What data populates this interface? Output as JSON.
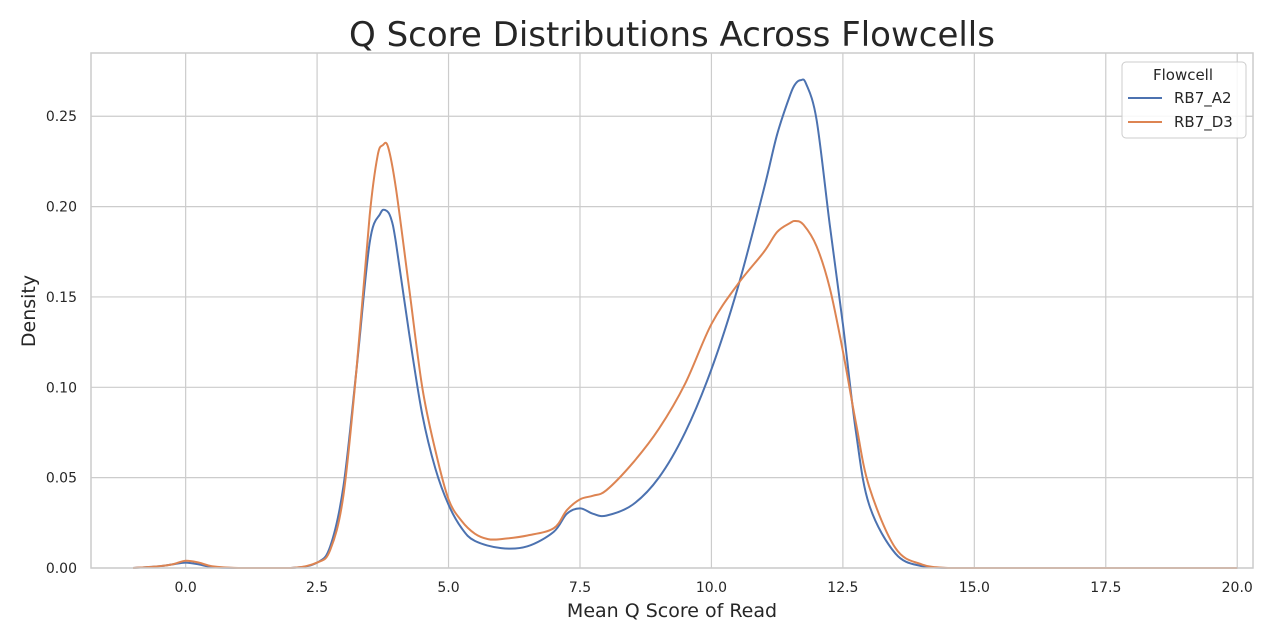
{
  "chart_data": {
    "type": "line",
    "title": "Q Score Distributions Across Flowcells",
    "xlabel": "Mean Q Score of Read",
    "ylabel": "Density",
    "xlim": [
      -1.8,
      20.3
    ],
    "ylim": [
      0,
      0.285
    ],
    "xticks": [
      0.0,
      2.5,
      5.0,
      7.5,
      10.0,
      12.5,
      15.0,
      17.5,
      20.0
    ],
    "xtick_labels": [
      "0.0",
      "2.5",
      "5.0",
      "7.5",
      "10.0",
      "12.5",
      "15.0",
      "17.5",
      "20.0"
    ],
    "yticks": [
      0.0,
      0.05,
      0.1,
      0.15,
      0.2,
      0.25
    ],
    "ytick_labels": [
      "0.00",
      "0.05",
      "0.10",
      "0.15",
      "0.20",
      "0.25"
    ],
    "grid": true,
    "legend": {
      "title": "Flowcell",
      "placement": "top-right"
    },
    "series": [
      {
        "name": "RB7_A2",
        "color": "#4c72b0",
        "x": [
          -1.0,
          -0.5,
          -0.25,
          0.0,
          0.25,
          0.5,
          1.0,
          2.0,
          2.5,
          2.75,
          3.0,
          3.25,
          3.5,
          3.7,
          3.8,
          3.9,
          4.0,
          4.25,
          4.5,
          4.75,
          5.0,
          5.25,
          5.5,
          6.0,
          6.5,
          7.0,
          7.25,
          7.5,
          7.75,
          8.0,
          8.5,
          9.0,
          9.5,
          10.0,
          10.5,
          11.0,
          11.25,
          11.5,
          11.6,
          11.7,
          11.8,
          12.0,
          12.25,
          12.5,
          12.75,
          13.0,
          13.5,
          14.0,
          14.5,
          15.0,
          20.0
        ],
        "values": [
          0.0,
          0.001,
          0.002,
          0.003,
          0.002,
          0.0005,
          0.0,
          0.0,
          0.003,
          0.012,
          0.045,
          0.11,
          0.18,
          0.196,
          0.198,
          0.194,
          0.18,
          0.13,
          0.085,
          0.055,
          0.035,
          0.022,
          0.015,
          0.011,
          0.012,
          0.02,
          0.03,
          0.033,
          0.03,
          0.029,
          0.035,
          0.05,
          0.075,
          0.11,
          0.155,
          0.21,
          0.24,
          0.262,
          0.268,
          0.27,
          0.268,
          0.248,
          0.19,
          0.135,
          0.075,
          0.035,
          0.008,
          0.001,
          0.0,
          0.0,
          0.0
        ]
      },
      {
        "name": "RB7_D3",
        "color": "#dd8452",
        "x": [
          -1.0,
          -0.5,
          -0.25,
          0.0,
          0.25,
          0.5,
          1.0,
          2.0,
          2.5,
          2.75,
          3.0,
          3.25,
          3.5,
          3.65,
          3.75,
          3.85,
          4.0,
          4.25,
          4.5,
          4.75,
          5.0,
          5.25,
          5.5,
          5.75,
          6.0,
          6.5,
          7.0,
          7.25,
          7.5,
          7.75,
          8.0,
          8.5,
          9.0,
          9.5,
          10.0,
          10.5,
          11.0,
          11.25,
          11.5,
          11.6,
          11.75,
          12.0,
          12.25,
          12.5,
          12.75,
          13.0,
          13.5,
          14.0,
          14.5,
          15.0,
          20.0
        ],
        "values": [
          0.0,
          0.001,
          0.002,
          0.004,
          0.003,
          0.001,
          0.0,
          0.0,
          0.003,
          0.01,
          0.04,
          0.11,
          0.195,
          0.228,
          0.234,
          0.233,
          0.21,
          0.155,
          0.1,
          0.065,
          0.038,
          0.026,
          0.019,
          0.016,
          0.016,
          0.018,
          0.022,
          0.032,
          0.038,
          0.04,
          0.043,
          0.058,
          0.077,
          0.102,
          0.135,
          0.157,
          0.175,
          0.186,
          0.191,
          0.192,
          0.19,
          0.178,
          0.155,
          0.12,
          0.08,
          0.045,
          0.011,
          0.002,
          0.0,
          0.0,
          0.0
        ]
      }
    ]
  }
}
